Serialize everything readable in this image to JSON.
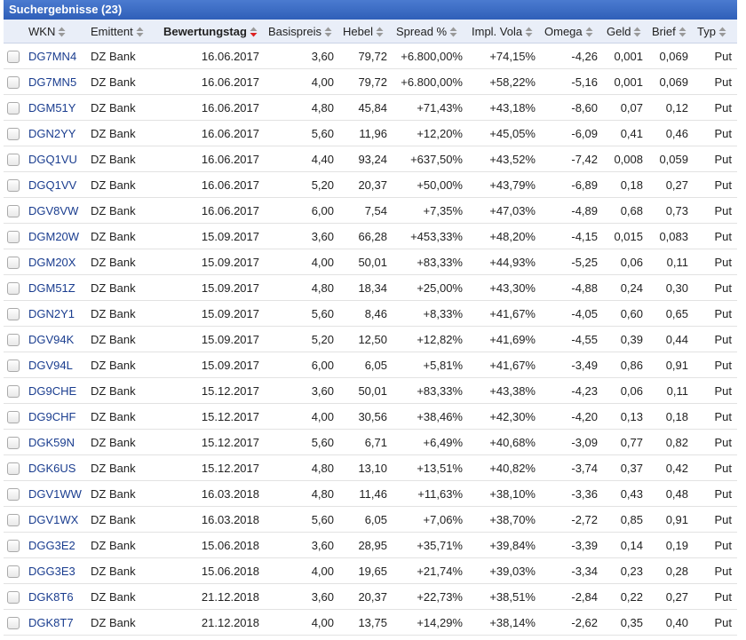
{
  "header": {
    "title": "Suchergebnisse (23)"
  },
  "table": {
    "columns": [
      "WKN",
      "Emittent",
      "Bewertungstag",
      "Basispreis",
      "Hebel",
      "Spread %",
      "Impl. Vola",
      "Omega",
      "Geld",
      "Brief",
      "Typ"
    ],
    "rows": [
      [
        "DG7MN4",
        "DZ Bank",
        "16.06.2017",
        "3,60",
        "79,72",
        "+6.800,00%",
        "+74,15%",
        "-4,26",
        "0,001",
        "0,069",
        "Put"
      ],
      [
        "DG7MN5",
        "DZ Bank",
        "16.06.2017",
        "4,00",
        "79,72",
        "+6.800,00%",
        "+58,22%",
        "-5,16",
        "0,001",
        "0,069",
        "Put"
      ],
      [
        "DGM51Y",
        "DZ Bank",
        "16.06.2017",
        "4,80",
        "45,84",
        "+71,43%",
        "+43,18%",
        "-8,60",
        "0,07",
        "0,12",
        "Put"
      ],
      [
        "DGN2YY",
        "DZ Bank",
        "16.06.2017",
        "5,60",
        "11,96",
        "+12,20%",
        "+45,05%",
        "-6,09",
        "0,41",
        "0,46",
        "Put"
      ],
      [
        "DGQ1VU",
        "DZ Bank",
        "16.06.2017",
        "4,40",
        "93,24",
        "+637,50%",
        "+43,52%",
        "-7,42",
        "0,008",
        "0,059",
        "Put"
      ],
      [
        "DGQ1VV",
        "DZ Bank",
        "16.06.2017",
        "5,20",
        "20,37",
        "+50,00%",
        "+43,79%",
        "-6,89",
        "0,18",
        "0,27",
        "Put"
      ],
      [
        "DGV8VW",
        "DZ Bank",
        "16.06.2017",
        "6,00",
        "7,54",
        "+7,35%",
        "+47,03%",
        "-4,89",
        "0,68",
        "0,73",
        "Put"
      ],
      [
        "DGM20W",
        "DZ Bank",
        "15.09.2017",
        "3,60",
        "66,28",
        "+453,33%",
        "+48,20%",
        "-4,15",
        "0,015",
        "0,083",
        "Put"
      ],
      [
        "DGM20X",
        "DZ Bank",
        "15.09.2017",
        "4,00",
        "50,01",
        "+83,33%",
        "+44,93%",
        "-5,25",
        "0,06",
        "0,11",
        "Put"
      ],
      [
        "DGM51Z",
        "DZ Bank",
        "15.09.2017",
        "4,80",
        "18,34",
        "+25,00%",
        "+43,30%",
        "-4,88",
        "0,24",
        "0,30",
        "Put"
      ],
      [
        "DGN2Y1",
        "DZ Bank",
        "15.09.2017",
        "5,60",
        "8,46",
        "+8,33%",
        "+41,67%",
        "-4,05",
        "0,60",
        "0,65",
        "Put"
      ],
      [
        "DGV94K",
        "DZ Bank",
        "15.09.2017",
        "5,20",
        "12,50",
        "+12,82%",
        "+41,69%",
        "-4,55",
        "0,39",
        "0,44",
        "Put"
      ],
      [
        "DGV94L",
        "DZ Bank",
        "15.09.2017",
        "6,00",
        "6,05",
        "+5,81%",
        "+41,67%",
        "-3,49",
        "0,86",
        "0,91",
        "Put"
      ],
      [
        "DG9CHE",
        "DZ Bank",
        "15.12.2017",
        "3,60",
        "50,01",
        "+83,33%",
        "+43,38%",
        "-4,23",
        "0,06",
        "0,11",
        "Put"
      ],
      [
        "DG9CHF",
        "DZ Bank",
        "15.12.2017",
        "4,00",
        "30,56",
        "+38,46%",
        "+42,30%",
        "-4,20",
        "0,13",
        "0,18",
        "Put"
      ],
      [
        "DGK59N",
        "DZ Bank",
        "15.12.2017",
        "5,60",
        "6,71",
        "+6,49%",
        "+40,68%",
        "-3,09",
        "0,77",
        "0,82",
        "Put"
      ],
      [
        "DGK6US",
        "DZ Bank",
        "15.12.2017",
        "4,80",
        "13,10",
        "+13,51%",
        "+40,82%",
        "-3,74",
        "0,37",
        "0,42",
        "Put"
      ],
      [
        "DGV1WW",
        "DZ Bank",
        "16.03.2018",
        "4,80",
        "11,46",
        "+11,63%",
        "+38,10%",
        "-3,36",
        "0,43",
        "0,48",
        "Put"
      ],
      [
        "DGV1WX",
        "DZ Bank",
        "16.03.2018",
        "5,60",
        "6,05",
        "+7,06%",
        "+38,70%",
        "-2,72",
        "0,85",
        "0,91",
        "Put"
      ],
      [
        "DGG3E2",
        "DZ Bank",
        "15.06.2018",
        "3,60",
        "28,95",
        "+35,71%",
        "+39,84%",
        "-3,39",
        "0,14",
        "0,19",
        "Put"
      ],
      [
        "DGG3E3",
        "DZ Bank",
        "15.06.2018",
        "4,00",
        "19,65",
        "+21,74%",
        "+39,03%",
        "-3,34",
        "0,23",
        "0,28",
        "Put"
      ],
      [
        "DGK8T6",
        "DZ Bank",
        "21.12.2018",
        "3,60",
        "20,37",
        "+22,73%",
        "+38,51%",
        "-2,84",
        "0,22",
        "0,27",
        "Put"
      ],
      [
        "DGK8T7",
        "DZ Bank",
        "21.12.2018",
        "4,00",
        "13,75",
        "+14,29%",
        "+38,14%",
        "-2,62",
        "0,35",
        "0,40",
        "Put"
      ]
    ]
  }
}
